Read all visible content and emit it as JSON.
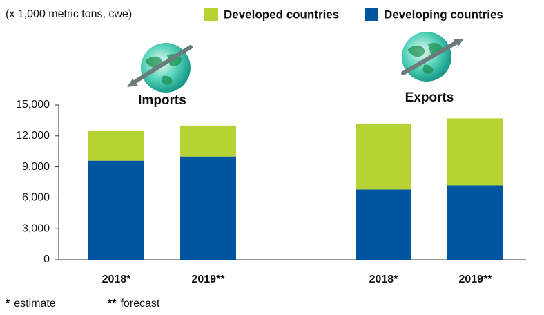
{
  "chart_data": {
    "type": "bar",
    "stacked": true,
    "unit_note": "(x 1,000 metric tons, cwe)",
    "groups": [
      "Imports",
      "Exports"
    ],
    "categories": [
      "2018*",
      "2019**",
      "2018*",
      "2019**"
    ],
    "series": [
      {
        "name": "Developing countries",
        "color": "#0055a0",
        "values": [
          9600,
          10000,
          6800,
          7200
        ]
      },
      {
        "name": "Developed countries",
        "color": "#b5d334",
        "values": [
          2900,
          3000,
          6400,
          6500
        ]
      }
    ],
    "legend_order": [
      1,
      0
    ],
    "ylim": [
      0,
      15000
    ],
    "yticks": [
      0,
      {
        "value": 3000,
        "label": "3,000"
      },
      {
        "value": 6000,
        "label": "6,000"
      },
      {
        "value": 9000,
        "label": "9,000"
      },
      {
        "value": 12000,
        "label": "12,000"
      },
      {
        "value": 15000,
        "label": "15,000"
      }
    ],
    "footnotes": [
      {
        "mark": "*",
        "text": "estimate"
      },
      {
        "mark": "**",
        "text": "forecast"
      }
    ]
  }
}
